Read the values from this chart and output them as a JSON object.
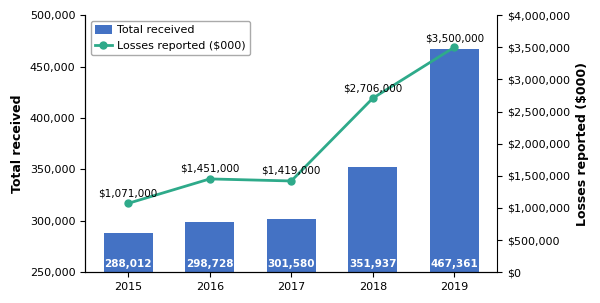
{
  "years": [
    2015,
    2016,
    2017,
    2018,
    2019
  ],
  "total_received": [
    288012,
    298728,
    301580,
    351937,
    467361
  ],
  "losses_reported": [
    1071000,
    1451000,
    1419000,
    2706000,
    3500000
  ],
  "bar_labels": [
    "288,012",
    "298,728",
    "301,580",
    "351,937",
    "467,361"
  ],
  "loss_labels": [
    "$1,071,000",
    "$1,451,000",
    "$1,419,000",
    "$2,706,000",
    "$3,500,000"
  ],
  "bar_color": "#4472C4",
  "line_color": "#2EAA8A",
  "ylabel_left": "Total received",
  "ylabel_right": "Losses reported ($000)",
  "ylim_left": [
    250000,
    500000
  ],
  "ylim_right": [
    0,
    4000000
  ],
  "yticks_left": [
    250000,
    300000,
    350000,
    400000,
    450000,
    500000
  ],
  "yticks_right": [
    0,
    500000,
    1000000,
    1500000,
    2000000,
    2500000,
    3000000,
    3500000,
    4000000
  ],
  "legend_labels": [
    "Total received",
    "Losses reported ($000)"
  ],
  "bar_label_fontsize": 7.5,
  "loss_label_fontsize": 7.5,
  "axis_label_fontsize": 9,
  "tick_fontsize": 8,
  "loss_label_offsets_x": [
    0,
    0,
    0,
    0,
    0
  ],
  "loss_label_offsets_y": [
    80000,
    80000,
    80000,
    80000,
    60000
  ]
}
